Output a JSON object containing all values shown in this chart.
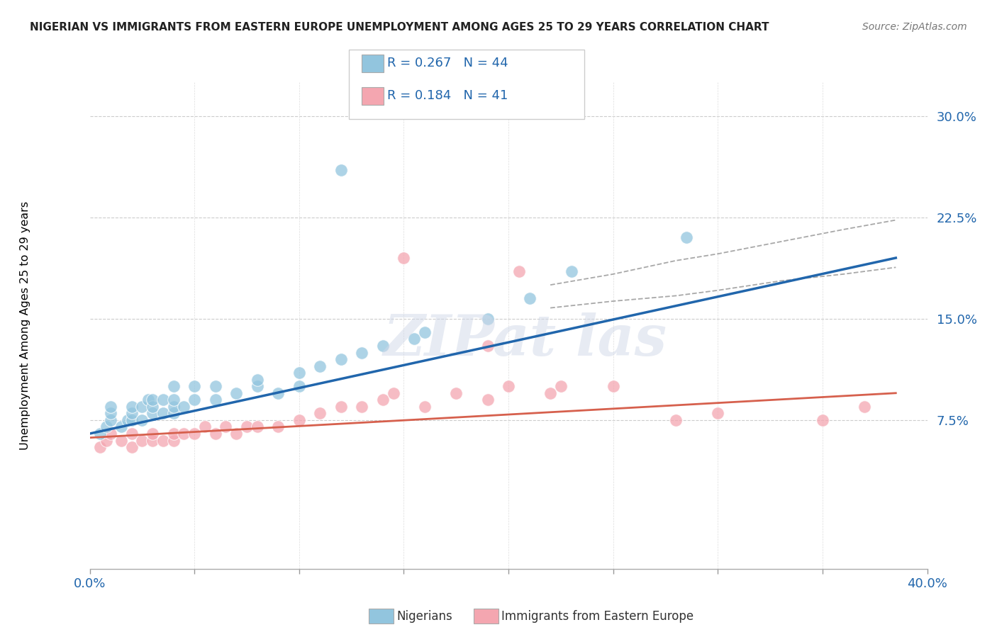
{
  "title": "NIGERIAN VS IMMIGRANTS FROM EASTERN EUROPE UNEMPLOYMENT AMONG AGES 25 TO 29 YEARS CORRELATION CHART",
  "source": "Source: ZipAtlas.com",
  "ylabel": "Unemployment Among Ages 25 to 29 years",
  "xlim": [
    0.0,
    0.4
  ],
  "ylim": [
    -0.035,
    0.325
  ],
  "yticks": [
    0.075,
    0.15,
    0.225,
    0.3
  ],
  "ytick_labels": [
    "7.5%",
    "15.0%",
    "22.5%",
    "30.0%"
  ],
  "xticks": [
    0.0,
    0.05,
    0.1,
    0.15,
    0.2,
    0.25,
    0.3,
    0.35,
    0.4
  ],
  "blue_color": "#92c5de",
  "pink_color": "#f4a6b0",
  "blue_line_color": "#2166ac",
  "pink_line_color": "#d6604d",
  "blue_scatter_x": [
    0.005,
    0.008,
    0.01,
    0.01,
    0.01,
    0.015,
    0.018,
    0.02,
    0.02,
    0.02,
    0.025,
    0.025,
    0.028,
    0.03,
    0.03,
    0.03,
    0.035,
    0.035,
    0.04,
    0.04,
    0.04,
    0.04,
    0.045,
    0.05,
    0.05,
    0.06,
    0.06,
    0.07,
    0.08,
    0.08,
    0.09,
    0.1,
    0.1,
    0.11,
    0.12,
    0.13,
    0.14,
    0.155,
    0.16,
    0.19,
    0.21,
    0.23,
    0.285,
    0.12
  ],
  "blue_scatter_y": [
    0.065,
    0.07,
    0.075,
    0.08,
    0.085,
    0.07,
    0.075,
    0.075,
    0.08,
    0.085,
    0.075,
    0.085,
    0.09,
    0.08,
    0.085,
    0.09,
    0.08,
    0.09,
    0.08,
    0.085,
    0.09,
    0.1,
    0.085,
    0.09,
    0.1,
    0.09,
    0.1,
    0.095,
    0.1,
    0.105,
    0.095,
    0.1,
    0.11,
    0.115,
    0.12,
    0.125,
    0.13,
    0.135,
    0.14,
    0.15,
    0.165,
    0.185,
    0.21,
    0.26
  ],
  "pink_scatter_x": [
    0.005,
    0.008,
    0.01,
    0.015,
    0.02,
    0.02,
    0.025,
    0.03,
    0.03,
    0.035,
    0.04,
    0.04,
    0.045,
    0.05,
    0.055,
    0.06,
    0.065,
    0.07,
    0.075,
    0.08,
    0.09,
    0.1,
    0.11,
    0.12,
    0.13,
    0.14,
    0.145,
    0.16,
    0.175,
    0.19,
    0.2,
    0.22,
    0.225,
    0.25,
    0.28,
    0.3,
    0.35,
    0.37,
    0.19,
    0.205,
    0.15
  ],
  "pink_scatter_y": [
    0.055,
    0.06,
    0.065,
    0.06,
    0.055,
    0.065,
    0.06,
    0.06,
    0.065,
    0.06,
    0.06,
    0.065,
    0.065,
    0.065,
    0.07,
    0.065,
    0.07,
    0.065,
    0.07,
    0.07,
    0.07,
    0.075,
    0.08,
    0.085,
    0.085,
    0.09,
    0.095,
    0.085,
    0.095,
    0.09,
    0.1,
    0.095,
    0.1,
    0.1,
    0.075,
    0.08,
    0.075,
    0.085,
    0.13,
    0.185,
    0.195
  ],
  "blue_line_x0": 0.0,
  "blue_line_x1": 0.385,
  "blue_line_y0": 0.065,
  "blue_line_y1": 0.195,
  "pink_line_x0": 0.0,
  "pink_line_x1": 0.385,
  "pink_line_y0": 0.062,
  "pink_line_y1": 0.095,
  "conf_x": [
    0.22,
    0.25,
    0.28,
    0.3,
    0.33,
    0.36,
    0.385
  ],
  "conf_y_upper": [
    0.175,
    0.183,
    0.193,
    0.198,
    0.207,
    0.216,
    0.223
  ],
  "conf_y_lower": [
    0.158,
    0.163,
    0.167,
    0.171,
    0.178,
    0.183,
    0.188
  ]
}
